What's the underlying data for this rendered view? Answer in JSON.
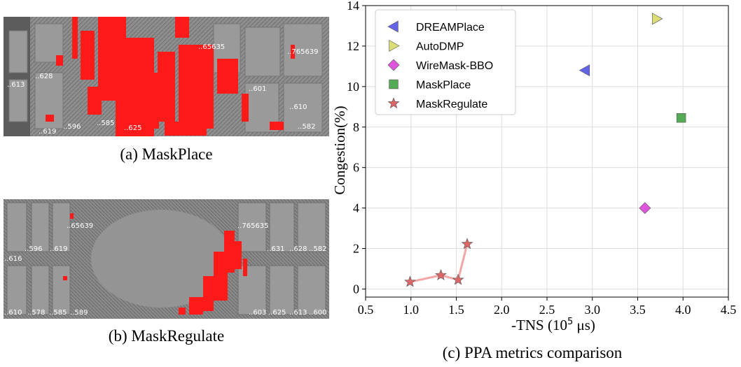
{
  "panel_a": {
    "caption": "(a) MaskPlace",
    "cell_labels": [
      "..613",
      "..628",
      "..65635",
      "..765639",
      "..601",
      "..610",
      "..619",
      "..596",
      "..585",
      "..625",
      "..582"
    ]
  },
  "panel_b": {
    "caption": "(b) MaskRegulate",
    "cell_labels": [
      "..65639",
      "..765635",
      "..596",
      "..619",
      "..631",
      "..628",
      "..582",
      "..616",
      "..610",
      "..578",
      "..585",
      "..589",
      "..603",
      "..625",
      "..613",
      "..600"
    ]
  },
  "panel_c": {
    "caption": "(c) PPA metrics comparison"
  },
  "colors": {
    "background": "#ffffff",
    "layout_gray": "#8e8e8e",
    "congestion_red": "#ff1a1a",
    "DREAMPlace": "#6464e6",
    "AutoDMP": "#dddd77",
    "WireMask-BBO": "#dd55dd",
    "MaskPlace": "#55aa55",
    "MaskRegulate": "#dd6666",
    "MaskRegulate_line": "#f4a6a6"
  },
  "chart_data": {
    "type": "scatter",
    "xlabel": "-TNS (10",
    "xlabel_exp": "5",
    "xlabel_unit": " μs)",
    "ylabel": "Congestion(%)",
    "xlim": [
      0.5,
      4.5
    ],
    "ylim": [
      -0.4,
      14
    ],
    "xticks": [
      "0.5",
      "1.0",
      "1.5",
      "2.0",
      "2.5",
      "3.0",
      "3.5",
      "4.0",
      "4.5"
    ],
    "yticks": [
      "0",
      "2",
      "4",
      "6",
      "8",
      "10",
      "12",
      "14"
    ],
    "grid": true,
    "legend_position": "top-left",
    "series": [
      {
        "name": "DREAMPlace",
        "marker": "triangle-left",
        "points": [
          [
            2.92,
            10.8
          ]
        ]
      },
      {
        "name": "AutoDMP",
        "marker": "triangle-right",
        "points": [
          [
            3.71,
            13.35
          ]
        ]
      },
      {
        "name": "WireMask-BBO",
        "marker": "diamond",
        "points": [
          [
            3.58,
            4.0
          ]
        ]
      },
      {
        "name": "MaskPlace",
        "marker": "square",
        "points": [
          [
            3.98,
            8.45
          ]
        ]
      },
      {
        "name": "MaskRegulate",
        "marker": "star",
        "connected": true,
        "points": [
          [
            0.99,
            0.35
          ],
          [
            1.33,
            0.68
          ],
          [
            1.52,
            0.45
          ],
          [
            1.62,
            2.22
          ]
        ]
      }
    ]
  }
}
